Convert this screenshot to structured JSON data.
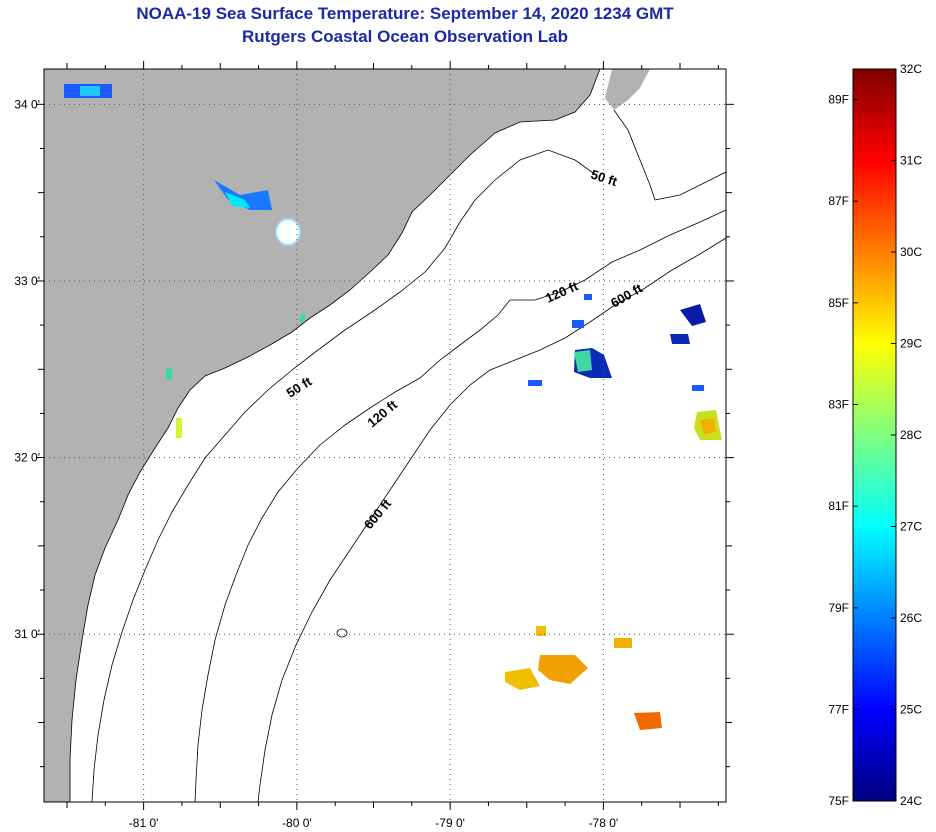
{
  "title": "NOAA-19 Sea Surface Temperature:  September 14, 2020 1234 GMT",
  "subtitle": "Rutgers Coastal Ocean Observation Lab",
  "map": {
    "lon_range": [
      -81.65,
      -77.2
    ],
    "lat_range": [
      30.05,
      34.2
    ],
    "lon_ticks": [
      {
        "value": -81,
        "label": "-81 0'"
      },
      {
        "value": -80,
        "label": "-80 0'"
      },
      {
        "value": -79,
        "label": "-79 0'"
      },
      {
        "value": -78,
        "label": "-78 0'"
      }
    ],
    "lat_ticks": [
      {
        "value": 34,
        "label": "34 0'"
      },
      {
        "value": 33,
        "label": "33 0'"
      },
      {
        "value": 32,
        "label": "32 0'"
      },
      {
        "value": 31,
        "label": "31 0'"
      }
    ],
    "contour_labels": [
      {
        "id": "c50-a",
        "text": "50 ft"
      },
      {
        "id": "c50-b",
        "text": "50 ft"
      },
      {
        "id": "c120-a",
        "text": "120 ft"
      },
      {
        "id": "c120-b",
        "text": "120 ft"
      },
      {
        "id": "c600-a",
        "text": "600 ft"
      },
      {
        "id": "c600-b",
        "text": "600 ft"
      }
    ],
    "land_color": "#b2b2b2",
    "ocean_color": "#ffffff"
  },
  "colorbar": {
    "colors_bottom_to_top": [
      "#00007f",
      "#0000ff",
      "#007fff",
      "#00ffff",
      "#7fff7f",
      "#ffff00",
      "#ff7f00",
      "#ff0000",
      "#7f0000"
    ],
    "fahrenheit_labels": [
      "75F",
      "77F",
      "79F",
      "81F",
      "83F",
      "85F",
      "87F",
      "89F"
    ],
    "celsius_labels": [
      "24C",
      "25C",
      "26C",
      "27C",
      "28C",
      "29C",
      "30C",
      "31C",
      "32C"
    ]
  }
}
